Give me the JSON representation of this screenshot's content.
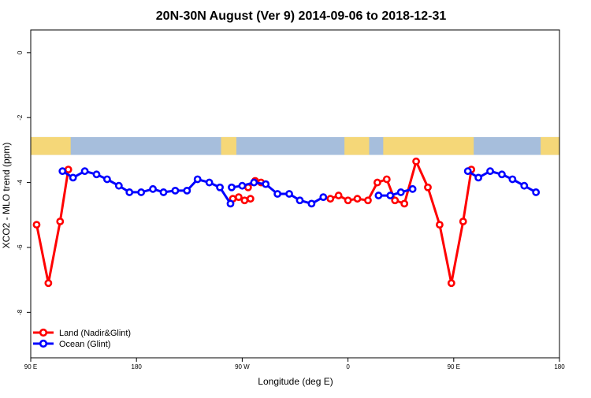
{
  "chart_data": {
    "type": "line",
    "title": "20N-30N August (Ver 9)   2014-09-06 to 2018-12-31",
    "xlabel": "Longitude (deg E)",
    "ylabel": "XCO2 - MLO trend (ppm)",
    "xlim": [
      90,
      540
    ],
    "ylim": [
      -9.4,
      0.7
    ],
    "x_ticks": [
      {
        "value": 90,
        "label": "90 E"
      },
      {
        "value": 180,
        "label": "180"
      },
      {
        "value": 270,
        "label": "90 W"
      },
      {
        "value": 360,
        "label": "0"
      },
      {
        "value": 450,
        "label": "90 E"
      },
      {
        "value": 540,
        "label": "180"
      }
    ],
    "y_ticks": [
      {
        "value": 0,
        "label": "0"
      },
      {
        "value": -2,
        "label": "-2"
      },
      {
        "value": -4,
        "label": "-4"
      },
      {
        "value": -6,
        "label": "-6"
      },
      {
        "value": -8,
        "label": "-8"
      }
    ],
    "map_strip": {
      "top": -2.6,
      "bottom": -3.15
    },
    "land_spans": [
      [
        90,
        124
      ],
      [
        252,
        265
      ],
      [
        357,
        378
      ],
      [
        390,
        467
      ],
      [
        524,
        540
      ]
    ],
    "colors": {
      "land": "#ff0000",
      "ocean": "#0000ff",
      "map_land": "#f5d778",
      "map_ocean": "#a6bedc"
    },
    "series": [
      {
        "name": "Land (Nadir&Glint)",
        "color": "#ff0000",
        "segments": [
          [
            [
              95,
              -5.3
            ],
            [
              105,
              -7.1
            ],
            [
              115,
              -5.2
            ],
            [
              122,
              -3.6
            ]
          ],
          [
            [
              262,
              -4.5
            ],
            [
              267,
              -4.45
            ],
            [
              272,
              -4.55
            ],
            [
              277,
              -4.5
            ]
          ],
          [
            [
              275,
              -4.15
            ],
            [
              281,
              -3.95
            ],
            [
              286,
              -4.0
            ]
          ],
          [
            [
              345,
              -4.5
            ],
            [
              352,
              -4.4
            ],
            [
              360,
              -4.55
            ],
            [
              368,
              -4.5
            ],
            [
              377,
              -4.55
            ],
            [
              385,
              -4.0
            ],
            [
              393,
              -3.9
            ],
            [
              400,
              -4.55
            ],
            [
              408,
              -4.65
            ],
            [
              418,
              -3.35
            ],
            [
              428,
              -4.15
            ],
            [
              438,
              -5.3
            ],
            [
              448,
              -7.1
            ],
            [
              458,
              -5.2
            ],
            [
              465,
              -3.6
            ]
          ]
        ]
      },
      {
        "name": "Ocean (Glint)",
        "color": "#0000ff",
        "segments": [
          [
            [
              117,
              -3.65
            ],
            [
              126,
              -3.85
            ],
            [
              136,
              -3.65
            ],
            [
              146,
              -3.75
            ],
            [
              155,
              -3.9
            ],
            [
              165,
              -4.1
            ],
            [
              174,
              -4.3
            ],
            [
              184,
              -4.3
            ],
            [
              194,
              -4.2
            ],
            [
              203,
              -4.3
            ],
            [
              213,
              -4.25
            ],
            [
              223,
              -4.25
            ],
            [
              232,
              -3.9
            ],
            [
              242,
              -4.0
            ],
            [
              251,
              -4.15
            ],
            [
              260,
              -4.65
            ]
          ],
          [
            [
              261,
              -4.15
            ],
            [
              270,
              -4.1
            ],
            [
              280,
              -4.0
            ],
            [
              290,
              -4.05
            ],
            [
              300,
              -4.35
            ],
            [
              310,
              -4.35
            ],
            [
              319,
              -4.55
            ],
            [
              329,
              -4.65
            ],
            [
              339,
              -4.45
            ]
          ],
          [
            [
              386,
              -4.4
            ],
            [
              396,
              -4.4
            ],
            [
              405,
              -4.3
            ],
            [
              415,
              -4.2
            ]
          ],
          [
            [
              462,
              -3.65
            ],
            [
              471,
              -3.85
            ],
            [
              481,
              -3.65
            ],
            [
              491,
              -3.75
            ],
            [
              500,
              -3.9
            ],
            [
              510,
              -4.1
            ],
            [
              520,
              -4.3
            ]
          ]
        ]
      }
    ],
    "legend": {
      "position": "bottom-left",
      "entries": [
        "Land (Nadir&Glint)",
        "Ocean (Glint)"
      ]
    }
  }
}
